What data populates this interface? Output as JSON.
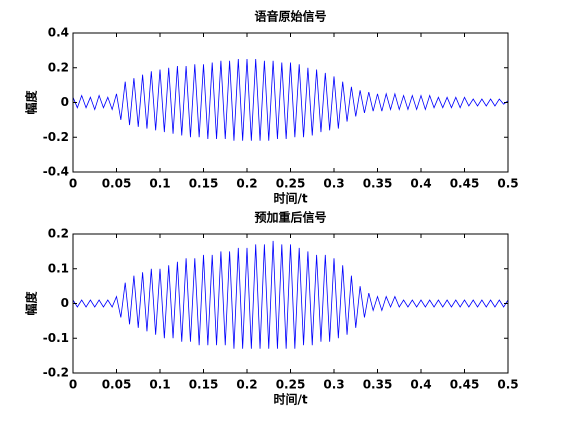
{
  "chart_data": [
    {
      "type": "line",
      "title": "语音原始信号",
      "xlabel": "时间/t",
      "ylabel": "幅度",
      "color": "#0000ff",
      "xlim": [
        0,
        0.5
      ],
      "ylim": [
        -0.4,
        0.4
      ],
      "xticks": [
        0,
        0.05,
        0.1,
        0.15,
        0.2,
        0.25,
        0.3,
        0.35,
        0.4,
        0.45,
        0.5
      ],
      "yticks": [
        -0.4,
        -0.2,
        0,
        0.2,
        0.4
      ],
      "x": [
        0,
        0.005,
        0.01,
        0.015,
        0.02,
        0.025,
        0.03,
        0.035,
        0.04,
        0.045,
        0.05,
        0.055,
        0.06,
        0.065,
        0.07,
        0.075,
        0.08,
        0.085,
        0.09,
        0.095,
        0.1,
        0.105,
        0.11,
        0.115,
        0.12,
        0.125,
        0.13,
        0.135,
        0.14,
        0.145,
        0.15,
        0.155,
        0.16,
        0.165,
        0.17,
        0.175,
        0.18,
        0.185,
        0.19,
        0.195,
        0.2,
        0.205,
        0.21,
        0.215,
        0.22,
        0.225,
        0.23,
        0.235,
        0.24,
        0.245,
        0.25,
        0.255,
        0.26,
        0.265,
        0.27,
        0.275,
        0.28,
        0.285,
        0.29,
        0.295,
        0.3,
        0.305,
        0.31,
        0.315,
        0.32,
        0.325,
        0.33,
        0.335,
        0.34,
        0.345,
        0.35,
        0.355,
        0.36,
        0.365,
        0.37,
        0.375,
        0.38,
        0.385,
        0.39,
        0.395,
        0.4,
        0.405,
        0.41,
        0.415,
        0.42,
        0.425,
        0.43,
        0.435,
        0.44,
        0.445,
        0.45,
        0.455,
        0.46,
        0.465,
        0.47,
        0.475,
        0.48,
        0.485,
        0.49,
        0.495,
        0.5
      ],
      "values": [
        0.03,
        -0.03,
        0.04,
        -0.03,
        0.03,
        -0.04,
        0.04,
        -0.03,
        0.03,
        -0.04,
        0.05,
        -0.1,
        0.12,
        -0.13,
        0.14,
        -0.14,
        0.16,
        -0.15,
        0.18,
        -0.16,
        0.19,
        -0.17,
        0.2,
        -0.18,
        0.21,
        -0.19,
        0.21,
        -0.2,
        0.22,
        -0.2,
        0.22,
        -0.21,
        0.23,
        -0.21,
        0.24,
        -0.21,
        0.24,
        -0.22,
        0.25,
        -0.22,
        0.25,
        -0.22,
        0.25,
        -0.22,
        0.24,
        -0.22,
        0.24,
        -0.21,
        0.23,
        -0.21,
        0.23,
        -0.2,
        0.22,
        -0.2,
        0.2,
        -0.19,
        0.19,
        -0.17,
        0.17,
        -0.16,
        0.15,
        -0.15,
        0.12,
        -0.11,
        0.09,
        -0.08,
        0.07,
        -0.06,
        0.06,
        -0.05,
        0.05,
        -0.05,
        0.05,
        -0.04,
        0.05,
        -0.04,
        0.04,
        -0.04,
        0.04,
        -0.04,
        0.04,
        -0.04,
        0.04,
        -0.03,
        0.03,
        -0.03,
        0.03,
        -0.03,
        0.03,
        -0.03,
        0.03,
        -0.02,
        0.02,
        -0.02,
        0.02,
        -0.02,
        0.02,
        -0.02,
        0.02,
        -0.01,
        0.01
      ]
    },
    {
      "type": "line",
      "title": "预加重后信号",
      "xlabel": "时间/t",
      "ylabel": "幅度",
      "color": "#0000ff",
      "xlim": [
        0,
        0.5
      ],
      "ylim": [
        -0.2,
        0.2
      ],
      "xticks": [
        0,
        0.05,
        0.1,
        0.15,
        0.2,
        0.25,
        0.3,
        0.35,
        0.4,
        0.45,
        0.5
      ],
      "yticks": [
        -0.2,
        -0.1,
        0,
        0.1,
        0.2
      ],
      "x": [
        0,
        0.005,
        0.01,
        0.015,
        0.02,
        0.025,
        0.03,
        0.035,
        0.04,
        0.045,
        0.05,
        0.055,
        0.06,
        0.065,
        0.07,
        0.075,
        0.08,
        0.085,
        0.09,
        0.095,
        0.1,
        0.105,
        0.11,
        0.115,
        0.12,
        0.125,
        0.13,
        0.135,
        0.14,
        0.145,
        0.15,
        0.155,
        0.16,
        0.165,
        0.17,
        0.175,
        0.18,
        0.185,
        0.19,
        0.195,
        0.2,
        0.205,
        0.21,
        0.215,
        0.22,
        0.225,
        0.23,
        0.235,
        0.24,
        0.245,
        0.25,
        0.255,
        0.26,
        0.265,
        0.27,
        0.275,
        0.28,
        0.285,
        0.29,
        0.295,
        0.3,
        0.305,
        0.31,
        0.315,
        0.32,
        0.325,
        0.33,
        0.335,
        0.34,
        0.345,
        0.35,
        0.355,
        0.36,
        0.365,
        0.37,
        0.375,
        0.38,
        0.385,
        0.39,
        0.395,
        0.4,
        0.405,
        0.41,
        0.415,
        0.42,
        0.425,
        0.43,
        0.435,
        0.44,
        0.445,
        0.45,
        0.455,
        0.46,
        0.465,
        0.47,
        0.475,
        0.48,
        0.485,
        0.49,
        0.495,
        0.5
      ],
      "values": [
        0.01,
        -0.01,
        0.01,
        -0.01,
        0.01,
        -0.01,
        0.01,
        -0.01,
        0.01,
        -0.01,
        0.02,
        -0.04,
        0.06,
        -0.06,
        0.08,
        -0.07,
        0.09,
        -0.08,
        0.1,
        -0.09,
        0.1,
        -0.1,
        0.11,
        -0.1,
        0.12,
        -0.11,
        0.13,
        -0.11,
        0.13,
        -0.12,
        0.14,
        -0.12,
        0.14,
        -0.12,
        0.15,
        -0.12,
        0.15,
        -0.13,
        0.16,
        -0.13,
        0.16,
        -0.13,
        0.17,
        -0.13,
        0.17,
        -0.13,
        0.18,
        -0.13,
        0.17,
        -0.13,
        0.17,
        -0.13,
        0.16,
        -0.12,
        0.15,
        -0.12,
        0.14,
        -0.11,
        0.14,
        -0.11,
        0.13,
        -0.1,
        0.11,
        -0.09,
        0.08,
        -0.07,
        0.05,
        -0.04,
        0.03,
        -0.02,
        0.02,
        -0.02,
        0.02,
        -0.01,
        0.02,
        -0.01,
        0.01,
        -0.01,
        0.01,
        -0.01,
        0.01,
        -0.01,
        0.01,
        -0.01,
        0.01,
        -0.01,
        0.01,
        -0.01,
        0.01,
        -0.01,
        0.01,
        -0.01,
        0.01,
        -0.01,
        0.01,
        -0.01,
        0.01,
        -0.01,
        0.01,
        -0.01,
        0.01
      ]
    }
  ]
}
